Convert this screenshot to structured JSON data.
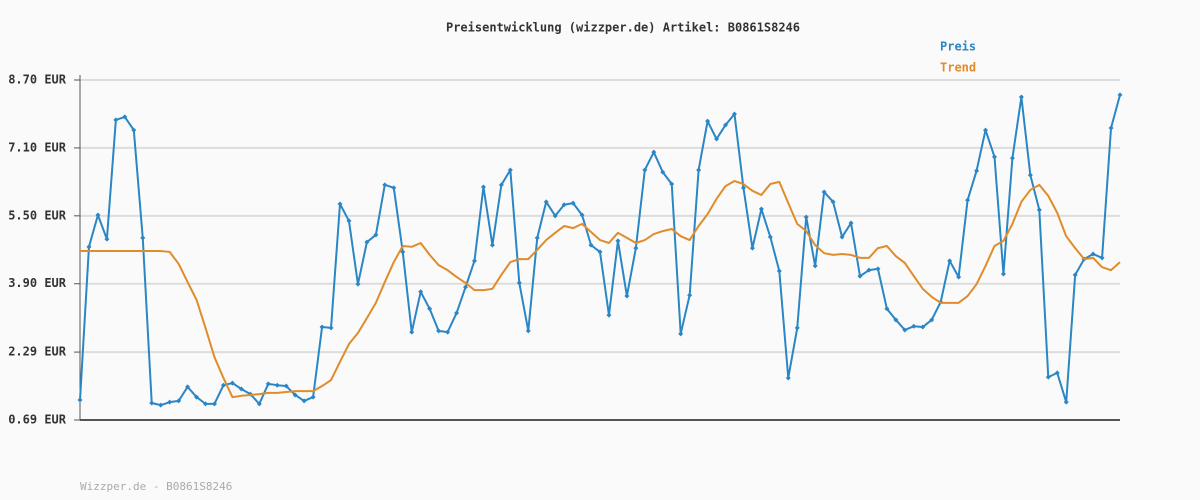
{
  "chart_data": {
    "type": "line",
    "title": "Preisentwicklung (wizzper.de) Artikel: B0861S8246",
    "footer": "Wizzper.de - B0861S8246",
    "legend": "top-right",
    "grid": true,
    "ylim": [
      0.69,
      8.7
    ],
    "yticks": [
      {
        "value": 0.69,
        "label": "0.69 EUR"
      },
      {
        "value": 2.29,
        "label": "2.29 EUR"
      },
      {
        "value": 3.9,
        "label": "3.90 EUR"
      },
      {
        "value": 5.5,
        "label": "5.50 EUR"
      },
      {
        "value": 7.1,
        "label": "7.10 EUR"
      },
      {
        "value": 8.7,
        "label": "8.70 EUR"
      }
    ],
    "categories": [
      null,
      null,
      null,
      null,
      null,
      null,
      null,
      null,
      null,
      null,
      null,
      null,
      null,
      null,
      null,
      null,
      null,
      null,
      null,
      null,
      null,
      null,
      null,
      null,
      null,
      null,
      null,
      null,
      null,
      null,
      null,
      null,
      null,
      null,
      null,
      null,
      null,
      null,
      null,
      null,
      null,
      null,
      null,
      null,
      null,
      null,
      null,
      null,
      null,
      null,
      null,
      null,
      null,
      null,
      null,
      null,
      null,
      null,
      null,
      null,
      null,
      null,
      null,
      null,
      null,
      null,
      null,
      null,
      null,
      null,
      null,
      null,
      null,
      null,
      null,
      null,
      null,
      null,
      null,
      null,
      null,
      null,
      null,
      null,
      null,
      null,
      null,
      null,
      null,
      null,
      null,
      null,
      null,
      null,
      null,
      null,
      null,
      null,
      null,
      null,
      null,
      null,
      null,
      null,
      null,
      null,
      null,
      null,
      null,
      null,
      null,
      null,
      null,
      null,
      null,
      null,
      null
    ],
    "series": [
      {
        "name": "Preis",
        "color": "#2a86c4",
        "markers": true,
        "values": [
          1.16,
          4.77,
          5.52,
          4.95,
          7.76,
          7.83,
          7.52,
          4.98,
          1.09,
          1.04,
          1.11,
          1.14,
          1.47,
          1.23,
          1.07,
          1.07,
          1.51,
          1.56,
          1.42,
          1.3,
          1.07,
          1.54,
          1.51,
          1.49,
          1.28,
          1.14,
          1.23,
          2.88,
          2.86,
          5.78,
          5.38,
          3.89,
          4.88,
          5.05,
          6.23,
          6.16,
          4.65,
          2.76,
          3.71,
          3.31,
          2.79,
          2.76,
          3.21,
          3.82,
          4.44,
          6.18,
          4.81,
          6.23,
          6.58,
          3.92,
          2.79,
          4.98,
          5.83,
          5.5,
          5.76,
          5.8,
          5.52,
          4.81,
          4.65,
          3.16,
          4.91,
          3.61,
          4.74,
          6.58,
          7.0,
          6.53,
          6.25,
          2.72,
          3.63,
          6.58,
          7.73,
          7.31,
          7.64,
          7.9,
          6.16,
          4.74,
          5.66,
          5.0,
          4.2,
          1.68,
          2.86,
          5.47,
          4.32,
          6.06,
          5.83,
          5.0,
          5.33,
          4.08,
          4.22,
          4.25,
          3.31,
          3.05,
          2.81,
          2.9,
          2.88,
          3.05,
          3.47,
          4.44,
          4.06,
          5.87,
          6.56,
          7.52,
          6.89,
          4.13,
          6.86,
          8.3,
          6.46,
          5.64,
          1.7,
          1.8,
          1.11,
          4.11,
          4.48,
          4.6,
          4.51,
          7.57,
          8.35
        ]
      },
      {
        "name": "Trend",
        "color": "#e08c2a",
        "markers": false,
        "values": [
          4.67,
          4.67,
          4.67,
          4.67,
          4.67,
          4.67,
          4.67,
          4.67,
          4.67,
          4.67,
          4.65,
          4.37,
          3.94,
          3.52,
          2.86,
          2.17,
          1.68,
          1.23,
          1.26,
          1.28,
          1.3,
          1.33,
          1.33,
          1.35,
          1.37,
          1.37,
          1.37,
          1.49,
          1.63,
          2.06,
          2.48,
          2.74,
          3.09,
          3.45,
          3.94,
          4.41,
          4.79,
          4.77,
          4.86,
          4.58,
          4.34,
          4.22,
          4.06,
          3.92,
          3.75,
          3.75,
          3.78,
          4.11,
          4.41,
          4.48,
          4.48,
          4.7,
          4.93,
          5.1,
          5.26,
          5.21,
          5.31,
          5.12,
          4.93,
          4.86,
          5.1,
          4.98,
          4.86,
          4.93,
          5.07,
          5.14,
          5.19,
          5.02,
          4.93,
          5.26,
          5.54,
          5.9,
          6.2,
          6.32,
          6.25,
          6.09,
          5.99,
          6.25,
          6.3,
          5.8,
          5.31,
          5.14,
          4.81,
          4.62,
          4.58,
          4.6,
          4.58,
          4.51,
          4.51,
          4.74,
          4.79,
          4.55,
          4.39,
          4.08,
          3.78,
          3.59,
          3.45,
          3.45,
          3.45,
          3.61,
          3.89,
          4.32,
          4.79,
          4.91,
          5.31,
          5.83,
          6.11,
          6.23,
          5.97,
          5.57,
          5.02,
          4.74,
          4.48,
          4.51,
          4.29,
          4.22,
          4.41
        ]
      }
    ]
  }
}
